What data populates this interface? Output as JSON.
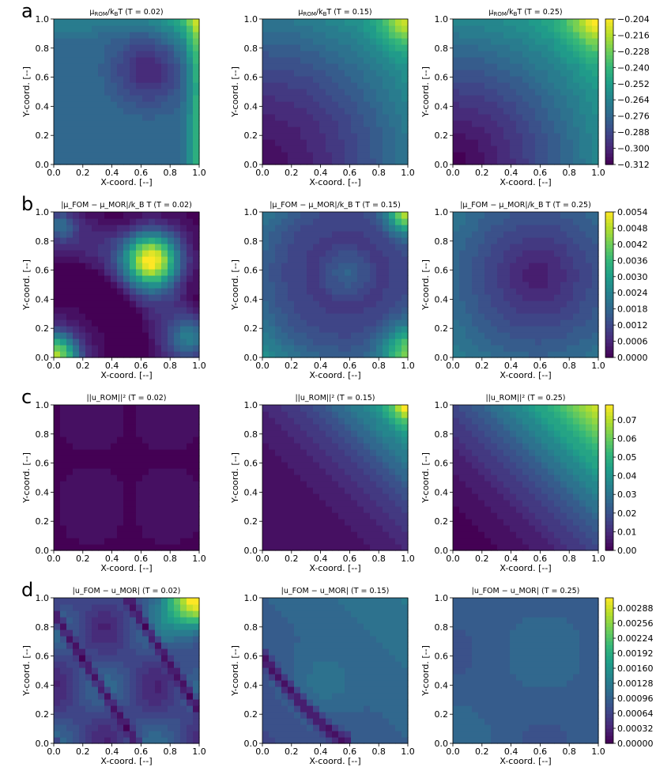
{
  "chart_data": {
    "type": "heatmap",
    "layout": "4x3 grid of contour plots",
    "xlabel": "X-coord. [--]",
    "ylabel": "Y-coord. [--]",
    "xlim": [
      0,
      1
    ],
    "ylim": [
      0,
      1
    ],
    "ticks": [
      "0.0",
      "0.2",
      "0.4",
      "0.6",
      "0.8",
      "1.0"
    ],
    "colormap": {
      "name": "viridis",
      "stops": [
        "#440154",
        "#482878",
        "#3e4989",
        "#31688e",
        "#26828e",
        "#1f9e89",
        "#35b779",
        "#6ece58",
        "#b5de2b",
        "#fde725"
      ]
    },
    "rows": [
      {
        "letter": "a",
        "colorbar": {
          "ticks": [
            "−0.204",
            "−0.216",
            "−0.228",
            "−0.240",
            "−0.252",
            "−0.264",
            "−0.276",
            "−0.288",
            "−0.300",
            "−0.312"
          ],
          "min": -0.312,
          "max": -0.204
        },
        "panels": [
          {
            "base": "μ",
            "sub": "ROM",
            "suffix": "/k",
            "suffix_sub": "B",
            "tail": "T (T = 0.02)",
            "field": "a1"
          },
          {
            "base": "μ",
            "sub": "ROM",
            "suffix": "/k",
            "suffix_sub": "B",
            "tail": "T (T = 0.15)",
            "field": "a2"
          },
          {
            "base": "μ",
            "sub": "ROM",
            "suffix": "/k",
            "suffix_sub": "B",
            "tail": "T (T = 0.25)",
            "field": "a3"
          }
        ]
      },
      {
        "letter": "b",
        "colorbar": {
          "ticks": [
            "0.0054",
            "0.0048",
            "0.0042",
            "0.0036",
            "0.0030",
            "0.0024",
            "0.0018",
            "0.0012",
            "0.0006",
            "0.0000"
          ],
          "min": 0.0,
          "max": 0.0054
        },
        "panels": [
          {
            "title": "|μ_FOM − μ_MOR|/k_B T (T = 0.02)",
            "field": "b1"
          },
          {
            "title": "|μ_FOM − μ_MOR|/k_B T (T = 0.15)",
            "field": "b2"
          },
          {
            "title": "|μ_FOM − μ_MOR|/k_B T (T = 0.25)",
            "field": "b3"
          }
        ]
      },
      {
        "letter": "c",
        "colorbar": {
          "ticks": [
            "0.07",
            "0.06",
            "0.05",
            "0.04",
            "0.03",
            "0.02",
            "0.01",
            "0.00"
          ],
          "min": 0.0,
          "max": 0.078
        },
        "panels": [
          {
            "title": "||u_ROM||² (T = 0.02)",
            "field": "c1"
          },
          {
            "title": "||u_ROM||² (T = 0.15)",
            "field": "c2"
          },
          {
            "title": "||u_ROM||² (T = 0.25)",
            "field": "c3"
          }
        ]
      },
      {
        "letter": "d",
        "colorbar": {
          "ticks": [
            "0.00288",
            "0.00256",
            "0.00224",
            "0.00192",
            "0.00160",
            "0.00128",
            "0.00096",
            "0.00064",
            "0.00032",
            "0.00000"
          ],
          "min": 0.0,
          "max": 0.0031
        },
        "panels": [
          {
            "title": "|u_FOM − u_MOR| (T = 0.02)",
            "field": "d1"
          },
          {
            "title": "|u_FOM − u_MOR| (T = 0.15)",
            "field": "d2"
          },
          {
            "title": "|u_FOM − u_MOR| (T = 0.25)",
            "field": "d3"
          }
        ]
      }
    ]
  }
}
